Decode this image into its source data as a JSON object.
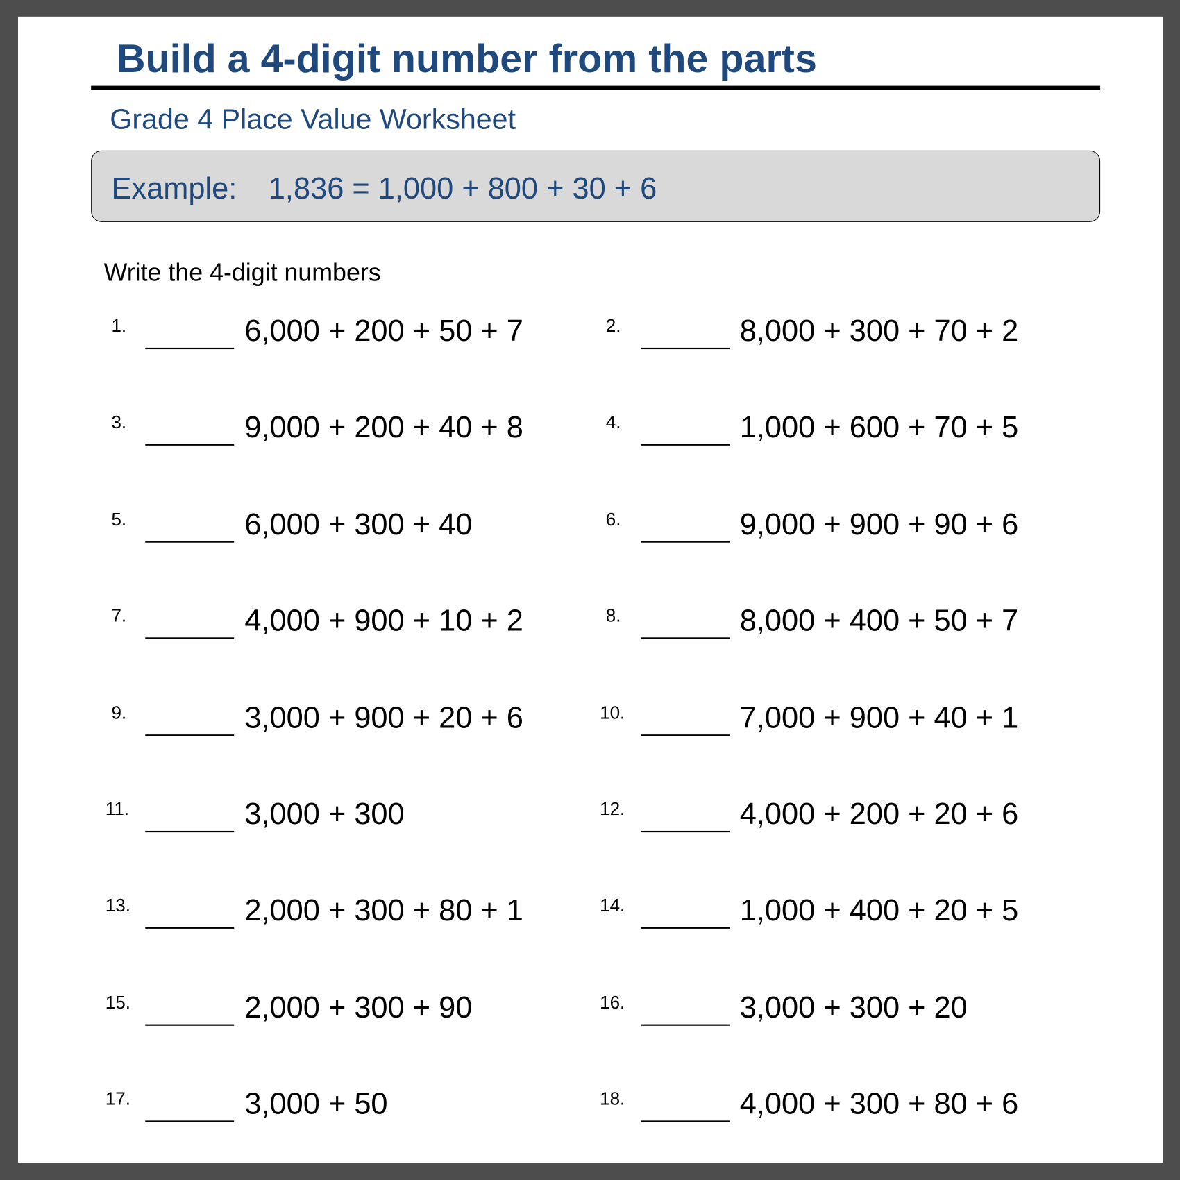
{
  "title": "Build a 4-digit number from the parts",
  "subtitle": "Grade 4 Place Value Worksheet",
  "example": {
    "label": "Example:",
    "equation": "1,836 = 1,000 + 800 + 30 + 6"
  },
  "instructions": "Write the 4-digit numbers",
  "problems": [
    {
      "number": "1.",
      "expression": "6,000 + 200 + 50 + 7"
    },
    {
      "number": "2.",
      "expression": "8,000 + 300 + 70 + 2"
    },
    {
      "number": "3.",
      "expression": "9,000 + 200 + 40 + 8"
    },
    {
      "number": "4.",
      "expression": "1,000 + 600 + 70 + 5"
    },
    {
      "number": "5.",
      "expression": "6,000 + 300 + 40"
    },
    {
      "number": "6.",
      "expression": "9,000 + 900 + 90 + 6"
    },
    {
      "number": "7.",
      "expression": "4,000 + 900 + 10 + 2"
    },
    {
      "number": "8.",
      "expression": "8,000 + 400 + 50 + 7"
    },
    {
      "number": "9.",
      "expression": "3,000 + 900 + 20 + 6"
    },
    {
      "number": "10.",
      "expression": "7,000 + 900 + 40 + 1"
    },
    {
      "number": "11.",
      "expression": "3,000 + 300"
    },
    {
      "number": "12.",
      "expression": "4,000 + 200 + 20 + 6"
    },
    {
      "number": "13.",
      "expression": "2,000 + 300 + 80 + 1"
    },
    {
      "number": "14.",
      "expression": "1,000 + 400 + 20 + 5"
    },
    {
      "number": "15.",
      "expression": "2,000 + 300 + 90"
    },
    {
      "number": "16.",
      "expression": "3,000 + 300 + 20"
    },
    {
      "number": "17.",
      "expression": "3,000 + 50"
    },
    {
      "number": "18.",
      "expression": "4,000 + 300 + 80 + 6"
    }
  ],
  "colors": {
    "heading": "#1f497d",
    "example_bg": "#d9d9d9",
    "frame": "#4d4d4d"
  }
}
